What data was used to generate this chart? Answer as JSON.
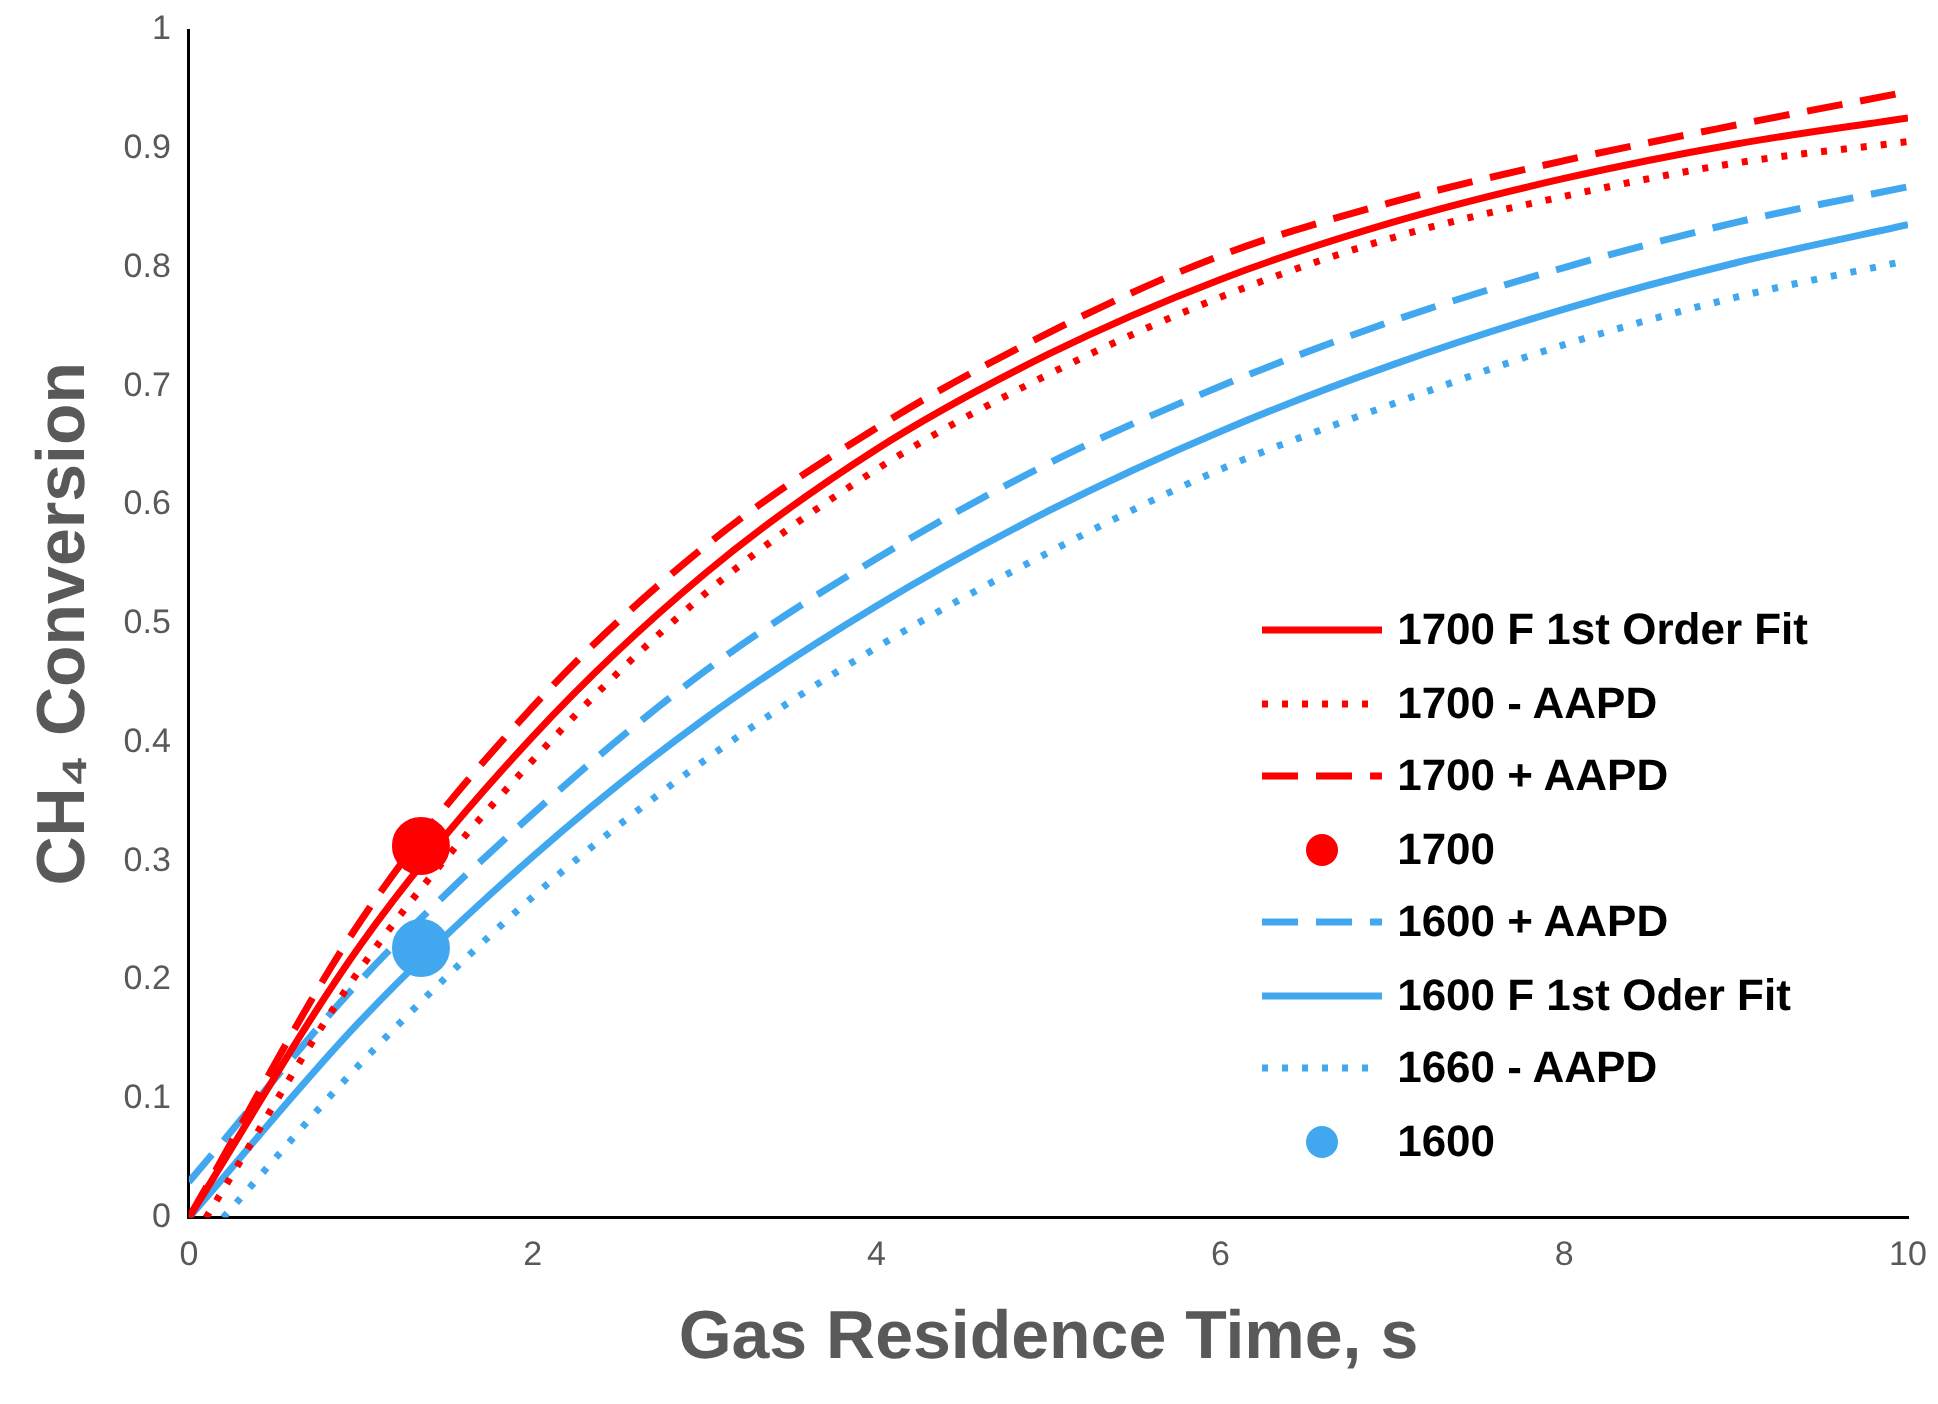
{
  "chart_data": {
    "type": "line",
    "xlabel": "Gas Residence Time, s",
    "ylabel": "CH₄ Conversion",
    "xlim": [
      0,
      10
    ],
    "xticks": [
      0,
      2,
      4,
      6,
      8,
      10
    ],
    "ylim": [
      0,
      1
    ],
    "yticks": [
      0,
      0.1,
      0.2,
      0.3,
      0.4,
      0.5,
      0.6,
      0.7,
      0.8,
      0.9,
      1
    ],
    "grid": false,
    "legend": "bottom right",
    "marker": "none",
    "series": [
      {
        "name": "1700 F 1st Order Fit",
        "color": "#ff0000",
        "line_style": "solid",
        "x": [
          0,
          1,
          2,
          3,
          4,
          5,
          6,
          7,
          8,
          9,
          10
        ],
        "values": [
          0,
          0.23,
          0.405,
          0.542,
          0.647,
          0.727,
          0.79,
          0.838,
          0.875,
          0.904,
          0.926
        ]
      },
      {
        "name": "1700 - AAPD",
        "color": "#ff0000",
        "line_style": "dotted",
        "x": [
          0.1,
          1,
          2,
          3,
          4,
          5,
          6,
          7,
          8,
          9,
          10
        ],
        "values": [
          0,
          0.21,
          0.385,
          0.525,
          0.63,
          0.71,
          0.775,
          0.825,
          0.86,
          0.888,
          0.906
        ]
      },
      {
        "name": "1700 + AAPD",
        "color": "#ff0000",
        "line_style": "dashed",
        "x": [
          0,
          1,
          2,
          3,
          4,
          5,
          6,
          7,
          8,
          9,
          10
        ],
        "values": [
          0,
          0.25,
          0.43,
          0.565,
          0.665,
          0.745,
          0.81,
          0.855,
          0.89,
          0.92,
          0.948
        ]
      },
      {
        "name": "1700",
        "type": "scatter",
        "marker": "circle",
        "color": "#ff0000",
        "x": [
          1.35
        ],
        "values": [
          0.313
        ]
      },
      {
        "name": "1600 + AAPD",
        "color": "#41a8f0",
        "line_style": "dashed",
        "x": [
          0,
          1,
          2,
          3,
          4,
          5,
          6,
          7,
          8,
          9,
          10
        ],
        "values": [
          0.03,
          0.2,
          0.34,
          0.46,
          0.555,
          0.635,
          0.7,
          0.755,
          0.8,
          0.838,
          0.868
        ]
      },
      {
        "name": "1600 F 1st Oder Fit",
        "color": "#41a8f0",
        "line_style": "solid",
        "x": [
          0,
          1,
          2,
          3,
          4,
          5,
          6,
          7,
          8,
          9,
          10
        ],
        "values": [
          0,
          0.166,
          0.304,
          0.42,
          0.515,
          0.595,
          0.662,
          0.718,
          0.765,
          0.804,
          0.836
        ]
      },
      {
        "name": "1660 - AAPD",
        "color": "#41a8f0",
        "line_style": "dotted",
        "x": [
          0.2,
          1,
          2,
          3,
          4,
          5,
          6,
          7,
          8,
          9,
          10
        ],
        "values": [
          0,
          0.13,
          0.27,
          0.385,
          0.48,
          0.56,
          0.63,
          0.685,
          0.735,
          0.775,
          0.806
        ]
      },
      {
        "name": "1600",
        "type": "scatter",
        "marker": "circle",
        "color": "#41a8f0",
        "x": [
          1.35
        ],
        "values": [
          0.227
        ]
      }
    ]
  }
}
